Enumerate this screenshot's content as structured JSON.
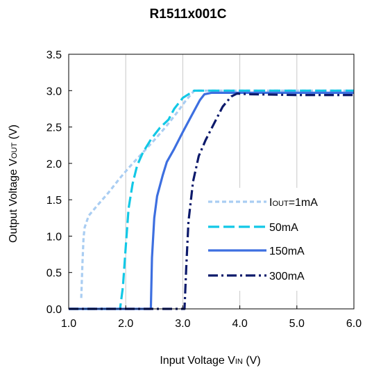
{
  "chart_data": {
    "type": "line",
    "title": "R1511x001C",
    "xlabel": {
      "main": "Input Voltage V",
      "sub": "IN",
      "tail": " (V)"
    },
    "ylabel": {
      "main": "Output Voltage V",
      "sub": "OUT",
      "tail": " (V)"
    },
    "xlim": [
      1.0,
      6.0
    ],
    "ylim": [
      0.0,
      3.5
    ],
    "xticks": [
      1.0,
      2.0,
      3.0,
      4.0,
      5.0,
      6.0
    ],
    "yticks": [
      0.0,
      0.5,
      1.0,
      1.5,
      2.0,
      2.5,
      3.0,
      3.5
    ],
    "xtick_labels": [
      "1.0",
      "2.0",
      "3.0",
      "4.0",
      "5.0",
      "6.0"
    ],
    "ytick_labels": [
      "0.0",
      "0.5",
      "1.0",
      "1.5",
      "2.0",
      "2.5",
      "3.0",
      "3.5"
    ],
    "grid": "vertical",
    "legend_position": "lower-right",
    "series": [
      {
        "name": "1mA",
        "legend": {
          "main": "I",
          "sub": "OUT",
          "tail": "=1mA"
        },
        "color": "#a9cdf2",
        "dash": "short-dash",
        "x": [
          1.22,
          1.24,
          1.26,
          1.28,
          1.35,
          1.5,
          1.7,
          1.9,
          2.1,
          2.3,
          2.5,
          2.7,
          2.9,
          3.05,
          3.2,
          3.5,
          4.0,
          5.0,
          6.0
        ],
        "y": [
          0.15,
          0.6,
          0.98,
          1.12,
          1.28,
          1.42,
          1.6,
          1.8,
          1.98,
          2.15,
          2.32,
          2.5,
          2.7,
          2.86,
          3.0,
          3.0,
          3.0,
          3.0,
          3.0
        ]
      },
      {
        "name": "50mA",
        "legend": {
          "main": "",
          "sub": "",
          "tail": "50mA"
        },
        "color": "#12c8e6",
        "dash": "long-dash",
        "x": [
          1.0,
          1.9,
          1.95,
          2.0,
          2.05,
          2.12,
          2.2,
          2.3,
          2.45,
          2.6,
          2.75,
          2.85,
          3.0,
          3.2,
          3.45,
          4.0,
          5.0,
          6.0
        ],
        "y": [
          0.0,
          0.0,
          0.3,
          0.85,
          1.38,
          1.72,
          1.97,
          2.15,
          2.34,
          2.49,
          2.6,
          2.75,
          2.9,
          3.0,
          3.0,
          3.0,
          3.0,
          3.0
        ]
      },
      {
        "name": "150mA",
        "legend": {
          "main": "",
          "sub": "",
          "tail": "150mA"
        },
        "color": "#3d6fe0",
        "dash": "solid",
        "x": [
          1.0,
          2.44,
          2.46,
          2.5,
          2.55,
          2.65,
          2.72,
          2.85,
          3.0,
          3.15,
          3.3,
          3.38,
          3.5,
          4.0,
          5.0,
          6.0
        ],
        "y": [
          0.0,
          0.0,
          0.7,
          1.25,
          1.55,
          1.84,
          2.02,
          2.2,
          2.43,
          2.65,
          2.87,
          2.95,
          2.97,
          2.97,
          2.97,
          2.97
        ]
      },
      {
        "name": "300mA",
        "legend": {
          "main": "",
          "sub": "",
          "tail": "300mA"
        },
        "color": "#0d1a6b",
        "dash": "dash-dot",
        "x": [
          1.0,
          3.03,
          3.06,
          3.1,
          3.18,
          3.28,
          3.4,
          3.55,
          3.7,
          3.85,
          3.95,
          4.2,
          5.0,
          6.0
        ],
        "y": [
          0.0,
          0.0,
          0.55,
          1.2,
          1.75,
          2.1,
          2.32,
          2.55,
          2.78,
          2.92,
          2.96,
          2.95,
          2.94,
          2.94
        ]
      }
    ]
  }
}
